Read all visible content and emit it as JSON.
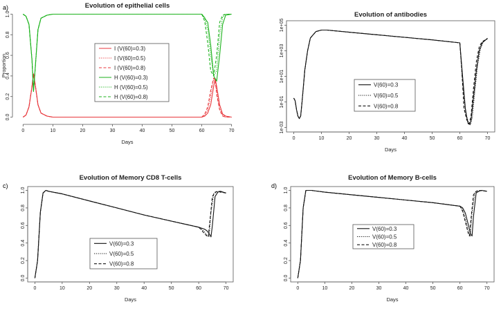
{
  "panel_labels": [
    "a)",
    "b)",
    "c)",
    "d)"
  ],
  "chart_data": [
    {
      "type": "line",
      "title": "Evolution of epithelial cells",
      "xlabel": "Days",
      "ylabel": "Proportion",
      "xlim": [
        0,
        70
      ],
      "ylim": [
        0,
        1
      ],
      "xticks": [
        "0",
        "10",
        "20",
        "30",
        "40",
        "50",
        "60",
        "70"
      ],
      "yticks": [
        "0.0",
        "0.2",
        "0.4",
        "0.6",
        "0.8",
        "1.0"
      ],
      "legend": [
        "I (V(60)=0.3)",
        "I (V(60)=0.5)",
        "I (V(60)=0.8)",
        "H (V(60)=0.3)",
        "H (V(60)=0.5)",
        "H (V(60)=0.8)"
      ],
      "colors": {
        "I": "#e8363b",
        "H": "#1bb21b"
      },
      "series": [
        {
          "name": "I (V(60)=0.3)",
          "style": "solid",
          "color": "#e8363b",
          "x": [
            0,
            1,
            2,
            3,
            3.5,
            4,
            5,
            6,
            8,
            10,
            20,
            40,
            60,
            61,
            62,
            63,
            64,
            64.5,
            65,
            66,
            67,
            68,
            70
          ],
          "y": [
            0,
            0.02,
            0.1,
            0.3,
            0.42,
            0.33,
            0.12,
            0.04,
            0.01,
            0,
            0,
            0,
            0,
            0.01,
            0.04,
            0.12,
            0.3,
            0.37,
            0.3,
            0.12,
            0.03,
            0.01,
            0
          ]
        },
        {
          "name": "I (V(60)=0.5)",
          "style": "dotted",
          "color": "#e8363b",
          "x": [
            0,
            1,
            2,
            3,
            3.5,
            4,
            5,
            6,
            8,
            10,
            20,
            40,
            60,
            61,
            62,
            63,
            63.8,
            64.3,
            65,
            66,
            67,
            68,
            70
          ],
          "y": [
            0,
            0.02,
            0.1,
            0.3,
            0.42,
            0.33,
            0.12,
            0.04,
            0.01,
            0,
            0,
            0,
            0,
            0.02,
            0.07,
            0.2,
            0.35,
            0.38,
            0.25,
            0.08,
            0.02,
            0,
            0
          ]
        },
        {
          "name": "I (V(60)=0.8)",
          "style": "dashed",
          "color": "#e8363b",
          "x": [
            0,
            1,
            2,
            3,
            3.5,
            4,
            5,
            6,
            8,
            10,
            20,
            40,
            60,
            61,
            62,
            63,
            64,
            64.5,
            65,
            66,
            67,
            68,
            70
          ],
          "y": [
            0,
            0.02,
            0.1,
            0.3,
            0.42,
            0.33,
            0.12,
            0.04,
            0.01,
            0,
            0,
            0,
            0,
            0.03,
            0.1,
            0.26,
            0.38,
            0.36,
            0.22,
            0.07,
            0.01,
            0,
            0
          ]
        },
        {
          "name": "H (V(60)=0.3)",
          "style": "solid",
          "color": "#1bb21b",
          "x": [
            0,
            1,
            2,
            3,
            3.5,
            4,
            5,
            6,
            8,
            10,
            20,
            40,
            60,
            62,
            63,
            64,
            65,
            66,
            67,
            68,
            70
          ],
          "y": [
            1,
            0.98,
            0.9,
            0.55,
            0.25,
            0.45,
            0.85,
            0.96,
            0.99,
            1,
            1,
            1,
            1,
            0.92,
            0.7,
            0.4,
            0.35,
            0.6,
            0.9,
            0.99,
            1
          ]
        },
        {
          "name": "H (V(60)=0.5)",
          "style": "dotted",
          "color": "#1bb21b",
          "x": [
            0,
            1,
            2,
            3,
            3.5,
            4,
            5,
            6,
            8,
            10,
            20,
            40,
            60,
            61,
            62,
            63,
            64,
            65,
            66,
            67,
            68,
            70
          ],
          "y": [
            1,
            0.98,
            0.9,
            0.55,
            0.25,
            0.45,
            0.85,
            0.96,
            0.99,
            1,
            1,
            1,
            1,
            0.97,
            0.85,
            0.6,
            0.4,
            0.45,
            0.8,
            0.97,
            1,
            1
          ]
        },
        {
          "name": "H (V(60)=0.8)",
          "style": "dashed",
          "color": "#1bb21b",
          "x": [
            0,
            1,
            2,
            3,
            3.5,
            4,
            5,
            6,
            8,
            10,
            20,
            40,
            60,
            61,
            62,
            63,
            64,
            65,
            66,
            67,
            68,
            70
          ],
          "y": [
            1,
            0.98,
            0.9,
            0.55,
            0.25,
            0.45,
            0.85,
            0.96,
            0.99,
            1,
            1,
            1,
            1,
            0.93,
            0.72,
            0.45,
            0.4,
            0.6,
            0.92,
            0.99,
            1,
            1
          ]
        }
      ]
    },
    {
      "type": "line",
      "title": "Evolution of antibodies",
      "xlabel": "Days",
      "ylabel": "",
      "xlim": [
        0,
        70
      ],
      "ylim_log10": [
        -3,
        5
      ],
      "xticks": [
        "0",
        "10",
        "20",
        "30",
        "40",
        "50",
        "60",
        "70"
      ],
      "yticks": [
        "1e-03",
        "1e-01",
        "1e+01",
        "1e+03",
        "1e+05"
      ],
      "legend": [
        "V(60)=0.3",
        "V(60)=0.5",
        "V(60)=0.8"
      ],
      "series": [
        {
          "name": "V(60)=0.3",
          "style": "solid",
          "x": [
            0,
            0.5,
            1,
            1.5,
            2,
            2.5,
            3,
            4,
            5,
            6,
            8,
            10,
            12,
            20,
            30,
            40,
            50,
            60,
            61,
            62,
            62.5,
            63,
            63.5,
            64,
            65,
            66,
            67,
            68,
            70
          ],
          "log10y": [
            -0.7,
            -0.9,
            -1.6,
            -2.1,
            -2.3,
            -2.1,
            -1,
            1.5,
            3,
            4,
            4.5,
            4.62,
            4.62,
            4.45,
            4.25,
            4.05,
            3.85,
            3.62,
            1,
            -1.5,
            -2.2,
            -2.7,
            -2.75,
            -2.5,
            -0.5,
            1.5,
            3,
            3.6,
            3.98
          ]
        },
        {
          "name": "V(60)=0.5",
          "style": "dotted",
          "x": [
            0,
            0.5,
            1,
            1.5,
            2,
            2.5,
            3,
            4,
            5,
            6,
            8,
            10,
            12,
            20,
            30,
            40,
            50,
            60,
            61,
            62,
            63,
            63.8,
            64.5,
            65.5,
            66.5,
            67.5,
            68.5,
            70
          ],
          "log10y": [
            -0.7,
            -0.9,
            -1.6,
            -2.1,
            -2.3,
            -2.1,
            -1,
            1.5,
            3,
            4,
            4.5,
            4.62,
            4.62,
            4.45,
            4.25,
            4.05,
            3.85,
            3.62,
            0.5,
            -1.8,
            -2.5,
            -2.8,
            -2.2,
            0,
            2,
            3.2,
            3.7,
            3.95
          ]
        },
        {
          "name": "V(60)=0.8",
          "style": "dashed",
          "x": [
            0,
            0.5,
            1,
            1.5,
            2,
            2.5,
            3,
            4,
            5,
            6,
            8,
            10,
            12,
            20,
            30,
            40,
            50,
            60,
            60.7,
            61.5,
            62.5,
            63.3,
            64,
            65,
            66,
            67,
            68,
            70
          ],
          "log10y": [
            -0.7,
            -0.9,
            -1.6,
            -2.1,
            -2.3,
            -2.1,
            -1,
            1.5,
            3,
            4,
            4.5,
            4.62,
            4.62,
            4.45,
            4.25,
            4.05,
            3.85,
            3.62,
            1.5,
            -1.5,
            -2.4,
            -2.7,
            -2.2,
            0.2,
            2.2,
            3.3,
            3.7,
            3.95
          ]
        }
      ]
    },
    {
      "type": "line",
      "title": "Evolution of Memory CD8 T-cells",
      "xlabel": "Days",
      "ylabel": "",
      "xlim": [
        0,
        70
      ],
      "ylim": [
        0,
        1
      ],
      "xticks": [
        "0",
        "10",
        "20",
        "30",
        "40",
        "50",
        "60",
        "70"
      ],
      "yticks": [
        "0.0",
        "0.2",
        "0.4",
        "0.6",
        "0.8",
        "1.0"
      ],
      "legend": [
        "V(60)=0.3",
        "V(60)=0.5",
        "V(60)=0.8"
      ],
      "series": [
        {
          "name": "V(60)=0.3",
          "style": "solid",
          "x": [
            0,
            1,
            2,
            3,
            4,
            5,
            10,
            20,
            30,
            40,
            50,
            60,
            61,
            62,
            63,
            64,
            64.5,
            65,
            66,
            67,
            68,
            69,
            70
          ],
          "y": [
            0,
            0.2,
            0.75,
            0.97,
            1,
            0.99,
            0.96,
            0.88,
            0.8,
            0.72,
            0.65,
            0.58,
            0.57,
            0.56,
            0.54,
            0.5,
            0.47,
            0.6,
            0.93,
            0.98,
            0.99,
            0.98,
            0.97
          ]
        },
        {
          "name": "V(60)=0.5",
          "style": "dotted",
          "x": [
            0,
            1,
            2,
            3,
            4,
            5,
            10,
            20,
            30,
            40,
            50,
            60,
            61,
            62,
            63,
            63.8,
            64.5,
            65.5,
            66.5,
            67.5,
            68.5,
            70
          ],
          "y": [
            0,
            0.2,
            0.75,
            0.97,
            1,
            0.99,
            0.96,
            0.88,
            0.8,
            0.72,
            0.65,
            0.58,
            0.56,
            0.53,
            0.49,
            0.47,
            0.75,
            0.96,
            0.98,
            0.99,
            0.98,
            0.97
          ]
        },
        {
          "name": "V(60)=0.8",
          "style": "dashed",
          "x": [
            0,
            1,
            2,
            3,
            4,
            5,
            10,
            20,
            30,
            40,
            50,
            60,
            61,
            62,
            63,
            63.5,
            64,
            65,
            66,
            67,
            68,
            70
          ],
          "y": [
            0,
            0.2,
            0.75,
            0.97,
            1,
            0.99,
            0.96,
            0.88,
            0.8,
            0.72,
            0.65,
            0.58,
            0.55,
            0.51,
            0.48,
            0.47,
            0.62,
            0.93,
            0.98,
            0.99,
            0.98,
            0.97
          ]
        }
      ]
    },
    {
      "type": "line",
      "title": "Evolution of Memory B-cells",
      "xlabel": "Days",
      "ylabel": "",
      "xlim": [
        0,
        70
      ],
      "ylim": [
        0,
        1
      ],
      "xticks": [
        "0",
        "10",
        "20",
        "30",
        "40",
        "50",
        "60",
        "70"
      ],
      "yticks": [
        "0.0",
        "0.2",
        "0.4",
        "0.6",
        "0.8",
        "1.0"
      ],
      "legend": [
        "V(60)=0.3",
        "V(60)=0.5",
        "V(60)=0.8"
      ],
      "series": [
        {
          "name": "V(60)=0.3",
          "style": "solid",
          "x": [
            0,
            1,
            2,
            3,
            4,
            5,
            10,
            20,
            30,
            40,
            50,
            60,
            61,
            62,
            63,
            64,
            64.5,
            65,
            66,
            67,
            68,
            70
          ],
          "y": [
            0,
            0.2,
            0.8,
            1,
            1,
            1,
            0.98,
            0.95,
            0.92,
            0.89,
            0.86,
            0.82,
            0.8,
            0.74,
            0.62,
            0.5,
            0.48,
            0.7,
            0.97,
            0.99,
            1,
            0.99
          ]
        },
        {
          "name": "V(60)=0.5",
          "style": "dotted",
          "x": [
            0,
            1,
            2,
            3,
            4,
            5,
            10,
            20,
            30,
            40,
            50,
            60,
            61,
            62,
            63,
            63.8,
            64.5,
            65.5,
            66.5,
            67.5,
            70
          ],
          "y": [
            0,
            0.2,
            0.8,
            1,
            1,
            1,
            0.98,
            0.95,
            0.92,
            0.89,
            0.86,
            0.82,
            0.78,
            0.68,
            0.55,
            0.48,
            0.75,
            0.97,
            0.99,
            1,
            0.99
          ]
        },
        {
          "name": "V(60)=0.8",
          "style": "dashed",
          "x": [
            0,
            1,
            2,
            3,
            4,
            5,
            10,
            20,
            30,
            40,
            50,
            60,
            61,
            62,
            63,
            63.5,
            64,
            65,
            66,
            67,
            70
          ],
          "y": [
            0,
            0.2,
            0.8,
            1,
            1,
            1,
            0.98,
            0.95,
            0.92,
            0.89,
            0.86,
            0.82,
            0.76,
            0.64,
            0.52,
            0.48,
            0.65,
            0.95,
            0.99,
            1,
            0.99
          ]
        }
      ]
    }
  ]
}
